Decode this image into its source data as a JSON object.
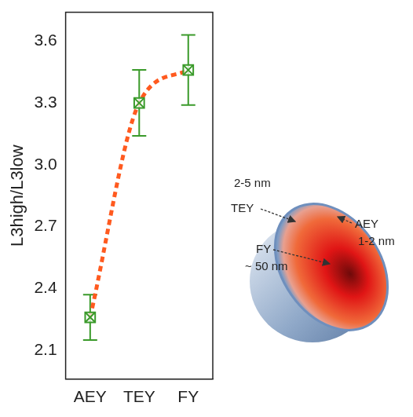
{
  "chart_data": {
    "type": "line",
    "y_label": "L3high/L3low",
    "categories": [
      "AEY",
      "TEY",
      "FY"
    ],
    "series": [
      {
        "type": "line",
        "color": "#ff5a1f",
        "line_style": "dashed",
        "marker": "none",
        "values": [
          2.26,
          3.3,
          3.46
        ]
      },
      {
        "type": "scatter",
        "color": "#3a9a2a",
        "marker": "square-x",
        "values": [
          2.26,
          3.3,
          3.46
        ],
        "errors": [
          0.11,
          0.16,
          0.17
        ]
      }
    ],
    "ylim": [
      1.96,
      3.74
    ],
    "yticks": [
      2.1,
      2.4,
      2.7,
      {
        "value": 3,
        "label": "3.0"
      },
      3.3,
      3.6
    ],
    "grid": false,
    "annotations": [
      "2-5 nm",
      "TEY",
      "AEY",
      "1-2 nm",
      "FY",
      "~ 50 nm"
    ]
  }
}
